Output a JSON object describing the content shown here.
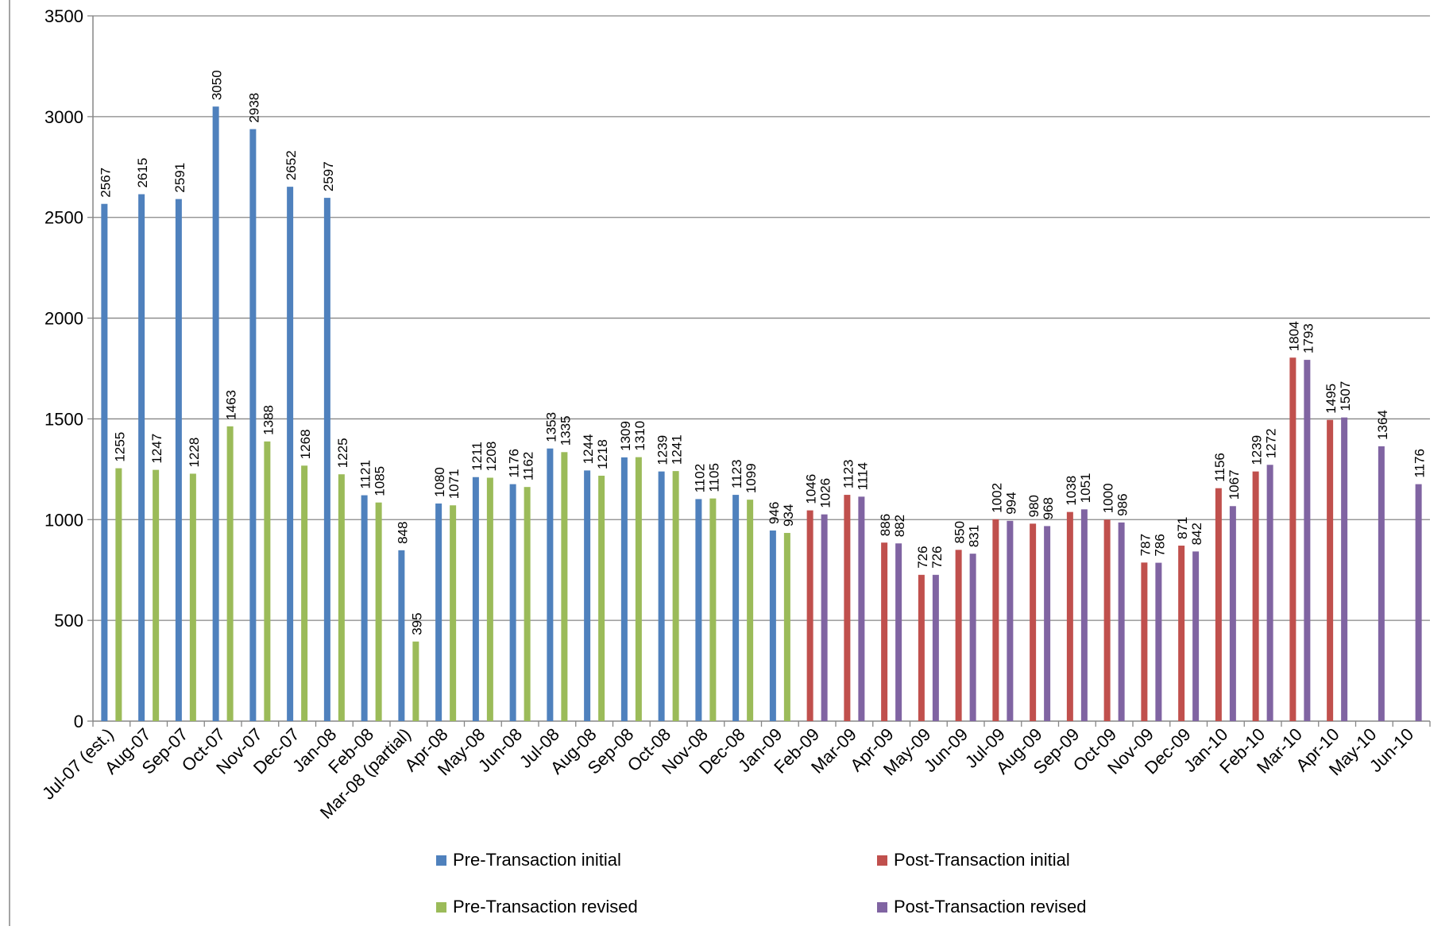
{
  "chart_data": {
    "type": "bar",
    "ylim": [
      0,
      3500
    ],
    "yticks": [
      0,
      500,
      1000,
      1500,
      2000,
      2500,
      3000,
      3500
    ],
    "grid": true,
    "legend_position": "bottom",
    "categories": [
      "Jul-07 (est.)",
      "Aug-07",
      "Sep-07",
      "Oct-07",
      "Nov-07",
      "Dec-07",
      "Jan-08",
      "Feb-08",
      "Mar-08 (partial)",
      "Apr-08",
      "May-08",
      "Jun-08",
      "Jul-08",
      "Aug-08",
      "Sep-08",
      "Oct-08",
      "Nov-08",
      "Dec-08",
      "Jan-09",
      "Feb-09",
      "Mar-09",
      "Apr-09",
      "May-09",
      "Jun-09",
      "Jul-09",
      "Aug-09",
      "Sep-09",
      "Oct-09",
      "Nov-09",
      "Dec-09",
      "Jan-10",
      "Feb-10",
      "Mar-10",
      "Apr-10",
      "May-10",
      "Jun-10"
    ],
    "series": [
      {
        "name": "Pre-Transaction initial",
        "color": "#4f81bd",
        "values": [
          2567,
          2615,
          2591,
          3050,
          2938,
          2652,
          2597,
          1121,
          848,
          1080,
          1211,
          1176,
          1353,
          1244,
          1309,
          1239,
          1102,
          1123,
          946,
          null,
          null,
          null,
          null,
          null,
          null,
          null,
          null,
          null,
          null,
          null,
          null,
          null,
          null,
          null,
          null,
          null
        ]
      },
      {
        "name": "Pre-Transaction revised",
        "color": "#9bbb59",
        "values": [
          1255,
          1247,
          1228,
          1463,
          1388,
          1268,
          1225,
          1085,
          395,
          1071,
          1208,
          1162,
          1335,
          1218,
          1310,
          1241,
          1105,
          1099,
          934,
          null,
          null,
          null,
          null,
          null,
          null,
          null,
          null,
          null,
          null,
          null,
          null,
          null,
          null,
          null,
          null,
          null
        ]
      },
      {
        "name": "Post-Transaction initial",
        "color": "#c0504d",
        "values": [
          null,
          null,
          null,
          null,
          null,
          null,
          null,
          null,
          null,
          null,
          null,
          null,
          null,
          null,
          null,
          null,
          null,
          null,
          null,
          1046,
          1123,
          886,
          726,
          850,
          1002,
          980,
          1038,
          1000,
          787,
          871,
          1156,
          1239,
          1804,
          1495,
          null,
          null
        ]
      },
      {
        "name": "Post-Transaction revised",
        "color": "#8064a2",
        "values": [
          null,
          null,
          null,
          null,
          null,
          null,
          null,
          null,
          null,
          null,
          null,
          null,
          null,
          null,
          null,
          null,
          null,
          null,
          null,
          1026,
          1114,
          882,
          726,
          831,
          994,
          968,
          1051,
          986,
          786,
          842,
          1067,
          1272,
          1793,
          1507,
          1364,
          1176
        ]
      }
    ]
  }
}
